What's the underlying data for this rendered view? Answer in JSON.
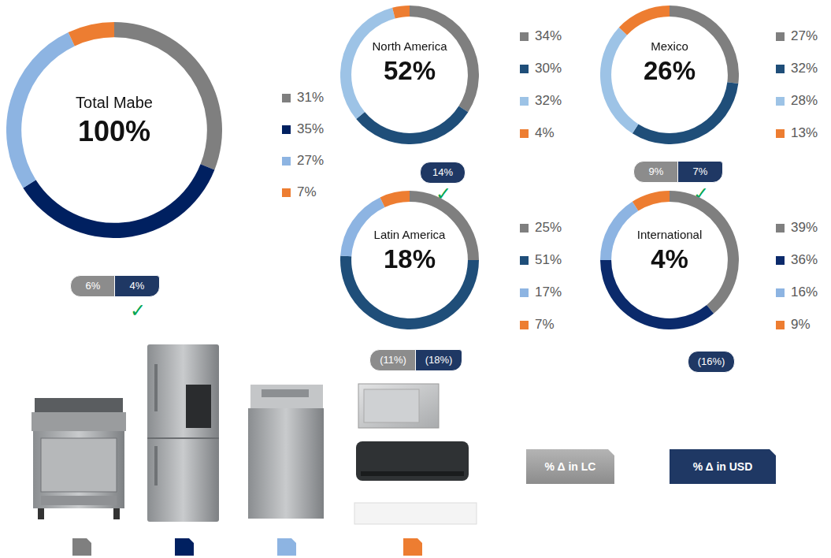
{
  "chart_data": [
    {
      "type": "doughnut",
      "title": "Total Mabe",
      "subtitle": "100%",
      "categories": [
        null,
        null,
        null,
        null
      ],
      "values": [
        31,
        35,
        27,
        7
      ],
      "value_labels": [
        "31%",
        "35%",
        "27%",
        "7%"
      ],
      "colors": [
        "#7f7f7f",
        "#002060",
        "#8db4e2",
        "#ed7d31"
      ],
      "changes": [
        {
          "series": "% Δ in LC",
          "label": "6%"
        },
        {
          "series": "% Δ in USD",
          "label": "4%"
        }
      ],
      "annotations": [
        "✓"
      ]
    },
    {
      "type": "doughnut",
      "title": "North America",
      "subtitle": "52%",
      "categories": [
        null,
        null,
        null,
        null
      ],
      "values": [
        34,
        30,
        32,
        4
      ],
      "value_labels": [
        "34%",
        "30%",
        "32%",
        "4%"
      ],
      "colors": [
        "#7f7f7f",
        "#1f4e79",
        "#9dc3e6",
        "#ed7d31"
      ],
      "changes": [
        {
          "series": "% Δ in USD",
          "label": "14%"
        }
      ],
      "annotations": [
        "✓"
      ]
    },
    {
      "type": "doughnut",
      "title": "Mexico",
      "subtitle": "26%",
      "categories": [
        null,
        null,
        null,
        null
      ],
      "values": [
        27,
        32,
        28,
        13
      ],
      "value_labels": [
        "27%",
        "32%",
        "28%",
        "13%"
      ],
      "colors": [
        "#7f7f7f",
        "#1f4e79",
        "#9dc3e6",
        "#ed7d31"
      ],
      "changes": [
        {
          "series": "% Δ in LC",
          "label": "9%"
        },
        {
          "series": "% Δ in USD",
          "label": "7%"
        }
      ],
      "annotations": [
        "✓"
      ]
    },
    {
      "type": "doughnut",
      "title": "Latin America",
      "subtitle": "18%",
      "categories": [
        null,
        null,
        null,
        null
      ],
      "values": [
        25,
        51,
        17,
        7
      ],
      "value_labels": [
        "25%",
        "51%",
        "17%",
        "7%"
      ],
      "colors": [
        "#7f7f7f",
        "#1f4e79",
        "#8db4e2",
        "#ed7d31"
      ],
      "changes": [
        {
          "series": "% Δ in LC",
          "label": "(11%)"
        },
        {
          "series": "% Δ in USD",
          "label": "(18%)"
        }
      ],
      "annotations": []
    },
    {
      "type": "doughnut",
      "title": "International",
      "subtitle": "4%",
      "categories": [
        null,
        null,
        null,
        null
      ],
      "values": [
        39,
        36,
        16,
        9
      ],
      "value_labels": [
        "39%",
        "36%",
        "16%",
        "9%"
      ],
      "colors": [
        "#7f7f7f",
        "#0b2a6b",
        "#8db4e2",
        "#ed7d31"
      ],
      "changes": [
        {
          "series": "% Δ in USD",
          "label": "(16%)"
        }
      ],
      "annotations": []
    }
  ],
  "badge_key": [
    {
      "name": "% Δ in LC",
      "color": "#8c8c8c"
    },
    {
      "name": "% Δ in USD",
      "color": "#1f3864"
    }
  ]
}
